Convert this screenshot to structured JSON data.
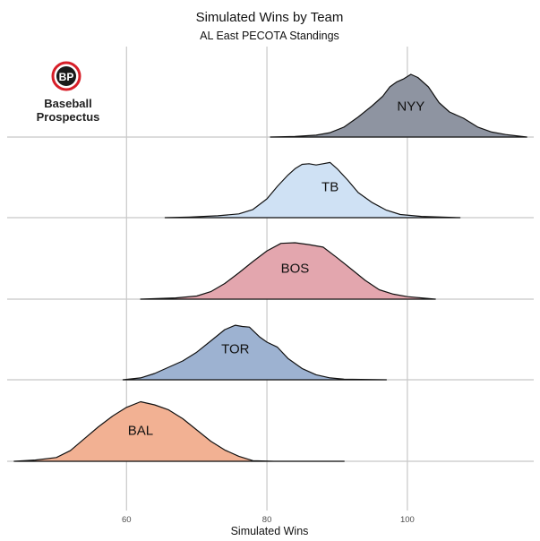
{
  "chart_data": {
    "type": "area",
    "title": "Simulated Wins by Team",
    "subtitle": "AL East PECOTA Standings",
    "xlabel": "Simulated Wins",
    "ylabel": "",
    "xlim": [
      43,
      118
    ],
    "xticks": [
      60,
      80,
      100
    ],
    "grid": true,
    "series": [
      {
        "name": "NYY",
        "color": "#8e94a1",
        "points": [
          [
            80.5,
            0
          ],
          [
            84,
            0.01
          ],
          [
            87,
            0.03
          ],
          [
            89,
            0.07
          ],
          [
            91,
            0.16
          ],
          [
            93,
            0.32
          ],
          [
            95,
            0.5
          ],
          [
            96.5,
            0.65
          ],
          [
            97.5,
            0.8
          ],
          [
            98.5,
            0.88
          ],
          [
            99.5,
            0.93
          ],
          [
            100.5,
            1.0
          ],
          [
            101.5,
            0.95
          ],
          [
            103,
            0.8
          ],
          [
            104.5,
            0.55
          ],
          [
            106,
            0.4
          ],
          [
            108,
            0.3
          ],
          [
            110,
            0.16
          ],
          [
            112,
            0.08
          ],
          [
            114,
            0.04
          ],
          [
            117,
            0
          ]
        ]
      },
      {
        "name": "TB",
        "color": "#cfe1f4",
        "points": [
          [
            65.5,
            0
          ],
          [
            69,
            0.01
          ],
          [
            73,
            0.03
          ],
          [
            76,
            0.06
          ],
          [
            78,
            0.13
          ],
          [
            80,
            0.3
          ],
          [
            81.5,
            0.5
          ],
          [
            83,
            0.68
          ],
          [
            84,
            0.78
          ],
          [
            85,
            0.85
          ],
          [
            86,
            0.86
          ],
          [
            87,
            0.84
          ],
          [
            88,
            0.86
          ],
          [
            89,
            0.88
          ],
          [
            90,
            0.78
          ],
          [
            91.5,
            0.6
          ],
          [
            93,
            0.4
          ],
          [
            95,
            0.24
          ],
          [
            97,
            0.12
          ],
          [
            99,
            0.05
          ],
          [
            102,
            0.02
          ],
          [
            107.5,
            0
          ]
        ]
      },
      {
        "name": "BOS",
        "color": "#e3a6ae",
        "points": [
          [
            62,
            0
          ],
          [
            67,
            0.02
          ],
          [
            70,
            0.05
          ],
          [
            72,
            0.12
          ],
          [
            74,
            0.25
          ],
          [
            76,
            0.42
          ],
          [
            78,
            0.6
          ],
          [
            80,
            0.77
          ],
          [
            82,
            0.89
          ],
          [
            84,
            0.9
          ],
          [
            86,
            0.87
          ],
          [
            88,
            0.83
          ],
          [
            90,
            0.66
          ],
          [
            92,
            0.48
          ],
          [
            94,
            0.3
          ],
          [
            96,
            0.15
          ],
          [
            98,
            0.08
          ],
          [
            100,
            0.04
          ],
          [
            104,
            0
          ]
        ]
      },
      {
        "name": "TOR",
        "color": "#9db2d1",
        "points": [
          [
            59.5,
            0
          ],
          [
            62,
            0.03
          ],
          [
            64,
            0.1
          ],
          [
            66,
            0.2
          ],
          [
            68,
            0.3
          ],
          [
            70,
            0.44
          ],
          [
            72,
            0.62
          ],
          [
            74,
            0.8
          ],
          [
            75.5,
            0.87
          ],
          [
            76.5,
            0.85
          ],
          [
            77.5,
            0.84
          ],
          [
            79,
            0.68
          ],
          [
            80,
            0.6
          ],
          [
            81.5,
            0.52
          ],
          [
            83,
            0.34
          ],
          [
            85,
            0.18
          ],
          [
            87,
            0.08
          ],
          [
            89,
            0.03
          ],
          [
            91,
            0.01
          ],
          [
            97,
            0
          ]
        ]
      },
      {
        "name": "BAL",
        "color": "#f2b193",
        "points": [
          [
            44,
            0
          ],
          [
            47,
            0.02
          ],
          [
            50,
            0.06
          ],
          [
            52,
            0.17
          ],
          [
            54,
            0.36
          ],
          [
            56,
            0.55
          ],
          [
            58,
            0.72
          ],
          [
            60,
            0.86
          ],
          [
            62,
            0.95
          ],
          [
            64,
            0.9
          ],
          [
            66,
            0.82
          ],
          [
            68,
            0.68
          ],
          [
            70,
            0.5
          ],
          [
            72,
            0.32
          ],
          [
            74,
            0.18
          ],
          [
            76,
            0.08
          ],
          [
            78,
            0.01
          ],
          [
            81,
            0
          ],
          [
            85,
            0
          ],
          [
            91,
            0
          ]
        ]
      }
    ]
  },
  "logo": {
    "badge": "BP",
    "line1": "Baseball",
    "line2": "Prospectus",
    "accent": "#d71e28"
  }
}
